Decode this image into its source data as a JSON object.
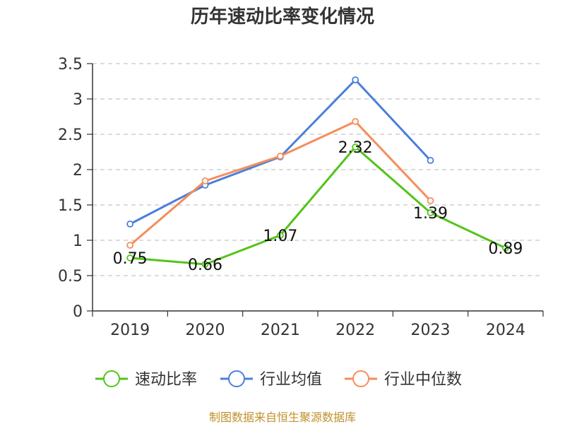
{
  "chart_data": {
    "type": "line",
    "title": "历年速动比率变化情况",
    "categories": [
      "2019",
      "2020",
      "2021",
      "2022",
      "2023",
      "2024"
    ],
    "ylim": [
      0,
      3.5
    ],
    "yticks": [
      "0",
      "0.5",
      "1",
      "1.5",
      "2",
      "2.5",
      "3",
      "3.5"
    ],
    "grid": true,
    "legend_position": "bottom",
    "series": [
      {
        "name": "速动比率",
        "color": "#52c41a",
        "values": [
          0.75,
          0.66,
          1.07,
          2.32,
          1.39,
          0.89
        ],
        "labels": [
          "0.75",
          "0.66",
          "1.07",
          "2.32",
          "1.39",
          "0.89"
        ]
      },
      {
        "name": "行业均值",
        "color": "#4a7fdb",
        "values": [
          1.23,
          1.78,
          2.18,
          3.27,
          2.13,
          null
        ]
      },
      {
        "name": "行业中位数",
        "color": "#f58d5c",
        "values": [
          0.93,
          1.84,
          2.19,
          2.68,
          1.56,
          null
        ]
      }
    ],
    "source": "制图数据来自恒生聚源数据库"
  }
}
